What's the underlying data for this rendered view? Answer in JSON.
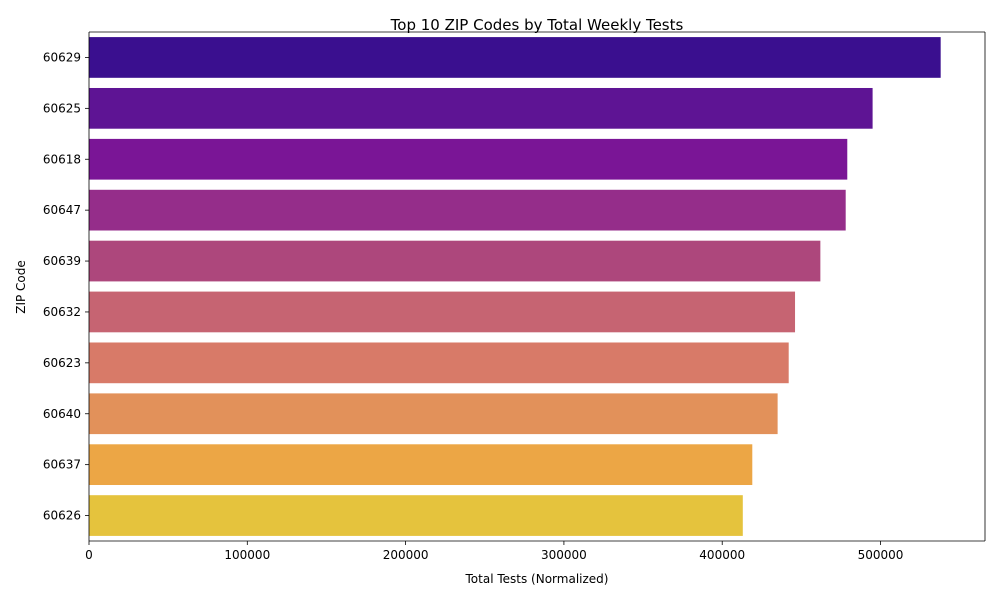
{
  "chart_data": {
    "type": "bar",
    "orientation": "horizontal",
    "title": "Top 10 ZIP Codes by Total Weekly Tests",
    "xlabel": "Total Tests (Normalized)",
    "ylabel": "ZIP Code",
    "xlim": [
      0,
      566000
    ],
    "xticks": [
      0,
      100000,
      200000,
      300000,
      400000,
      500000
    ],
    "grid": false,
    "legend": "none",
    "categories": [
      "60629",
      "60625",
      "60618",
      "60647",
      "60639",
      "60632",
      "60623",
      "60640",
      "60637",
      "60626"
    ],
    "values": [
      538000,
      495000,
      479000,
      478000,
      462000,
      446000,
      442000,
      435000,
      419000,
      413000
    ],
    "colors": [
      "#3a0f8f",
      "#5e1494",
      "#7a1596",
      "#952d8a",
      "#ad477c",
      "#c66472",
      "#d87a68",
      "#e2915a",
      "#eca645",
      "#e5c33d"
    ]
  }
}
